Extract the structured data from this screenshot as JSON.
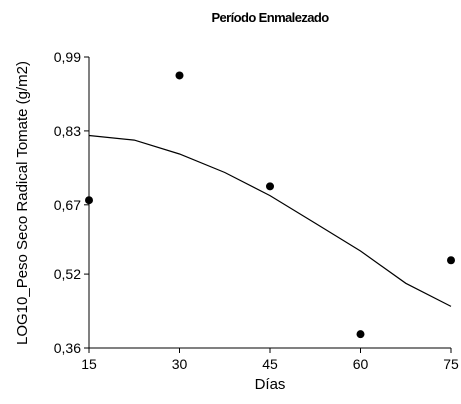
{
  "chart_data": {
    "type": "scatter",
    "title": "Período Enmalezado",
    "xlabel": "Días",
    "ylabel": "LOG10_Peso Seco Radical Tomate (g/m2)",
    "xlim": [
      15,
      75
    ],
    "ylim": [
      0.36,
      0.99
    ],
    "xticks": [
      15,
      30,
      45,
      60,
      75
    ],
    "yticks": [
      0.36,
      0.52,
      0.67,
      0.83,
      0.99
    ],
    "xtick_labels": [
      "15",
      "30",
      "45",
      "60",
      "75"
    ],
    "ytick_labels": [
      "0,36",
      "0,52",
      "0,67",
      "0,83",
      "0,99"
    ],
    "points": [
      {
        "x": 15,
        "y": 0.68
      },
      {
        "x": 30,
        "y": 0.95
      },
      {
        "x": 45,
        "y": 0.71
      },
      {
        "x": 60,
        "y": 0.39
      },
      {
        "x": 75,
        "y": 0.55
      }
    ],
    "fit_curve": {
      "x": [
        15,
        22.5,
        30,
        37.5,
        45,
        52.5,
        60,
        67.5,
        75
      ],
      "y": [
        0.82,
        0.81,
        0.78,
        0.74,
        0.69,
        0.63,
        0.57,
        0.5,
        0.45
      ]
    },
    "grid": false,
    "legend": "none"
  }
}
